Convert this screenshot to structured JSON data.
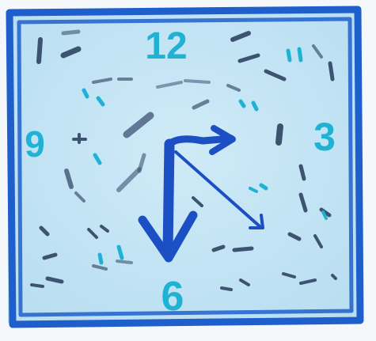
{
  "clock": {
    "numerals": {
      "n12": "12",
      "n3": "3",
      "n6": "6",
      "n9": "9"
    },
    "colors": {
      "paper": "#c8e7f5",
      "frame": "#1f5fcc",
      "numeral": "#1fb2d4",
      "hand": "#1b4fc3",
      "marks_dark": "#3b4f70",
      "marks_teal": "#1fb2d4"
    }
  }
}
